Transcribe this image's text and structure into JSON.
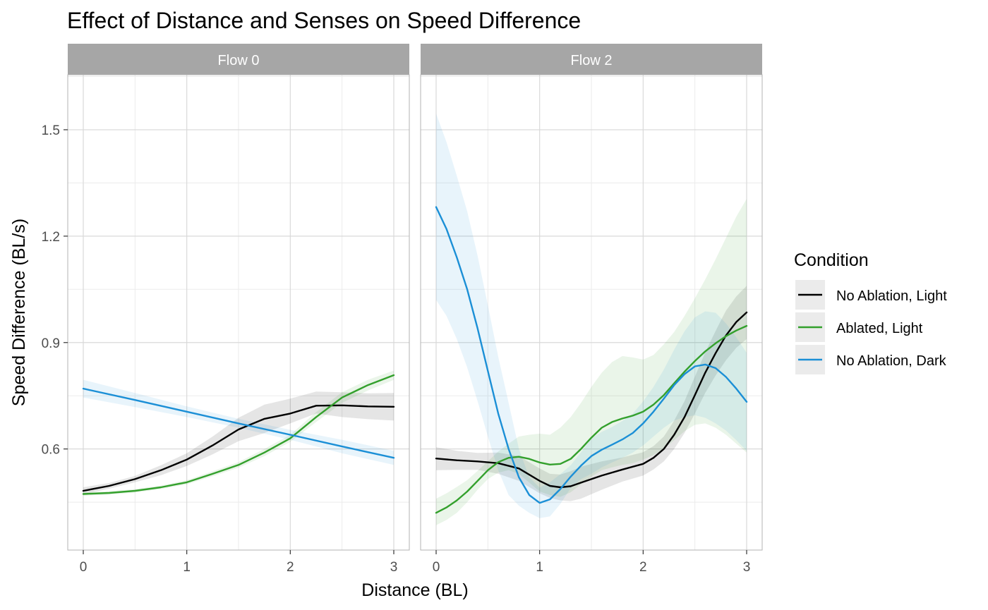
{
  "chart_data": {
    "type": "line",
    "title": "Effect of Distance and Senses on Speed Difference",
    "xlabel": "Distance (BL)",
    "ylabel": "Speed Difference (BL/s)",
    "xlim": [
      -0.15,
      3.15
    ],
    "ylim": [
      0.315,
      1.655
    ],
    "x_ticks": [
      0,
      1,
      2,
      3
    ],
    "y_ticks": [
      0.6,
      0.9,
      1.2,
      1.5
    ],
    "x_tick_labels": [
      "0",
      "1",
      "2",
      "3"
    ],
    "y_tick_labels": [
      "0.6",
      "0.9",
      "1.2",
      "1.5"
    ],
    "grid": true,
    "legend": {
      "title": "Condition",
      "position": "right",
      "entries": [
        {
          "label": "No Ablation, Light",
          "color": "#000000"
        },
        {
          "label": "Ablated, Light",
          "color": "#33a02c"
        },
        {
          "label": "No Ablation, Dark",
          "color": "#1b8fd6"
        }
      ]
    },
    "panels": [
      {
        "name": "Flow 0",
        "series": [
          {
            "name": "No Ablation, Light",
            "color": "#000000",
            "x": [
              0,
              0.25,
              0.5,
              0.75,
              1.0,
              1.25,
              1.5,
              1.75,
              2.0,
              2.25,
              2.5,
              2.75,
              3.0
            ],
            "y": [
              0.482,
              0.496,
              0.515,
              0.54,
              0.57,
              0.61,
              0.655,
              0.685,
              0.7,
              0.722,
              0.723,
              0.72,
              0.719
            ],
            "ymin": [
              0.472,
              0.488,
              0.506,
              0.526,
              0.552,
              0.585,
              0.622,
              0.645,
              0.672,
              0.7,
              0.69,
              0.684,
              0.68
            ],
            "ymax": [
              0.492,
              0.504,
              0.524,
              0.554,
              0.588,
              0.635,
              0.688,
              0.725,
              0.742,
              0.762,
              0.76,
              0.757,
              0.758
            ]
          },
          {
            "name": "Ablated, Light",
            "color": "#33a02c",
            "x": [
              0,
              0.25,
              0.5,
              0.75,
              1.0,
              1.25,
              1.5,
              1.75,
              2.0,
              2.25,
              2.5,
              2.75,
              3.0
            ],
            "y": [
              0.473,
              0.476,
              0.482,
              0.492,
              0.506,
              0.53,
              0.555,
              0.59,
              0.63,
              0.69,
              0.745,
              0.78,
              0.808
            ],
            "ymin": [
              0.468,
              0.471,
              0.477,
              0.487,
              0.5,
              0.523,
              0.547,
              0.58,
              0.62,
              0.676,
              0.73,
              0.765,
              0.795
            ],
            "ymax": [
              0.478,
              0.481,
              0.487,
              0.497,
              0.512,
              0.537,
              0.563,
              0.6,
              0.64,
              0.704,
              0.76,
              0.795,
              0.821
            ]
          },
          {
            "name": "No Ablation, Dark",
            "color": "#1b8fd6",
            "x": [
              0,
              0.5,
              1.0,
              1.5,
              2.0,
              2.5,
              3.0
            ],
            "y": [
              0.77,
              0.738,
              0.705,
              0.672,
              0.64,
              0.607,
              0.575
            ],
            "ymin": [
              0.745,
              0.718,
              0.69,
              0.66,
              0.626,
              0.588,
              0.555
            ],
            "ymax": [
              0.795,
              0.758,
              0.72,
              0.685,
              0.654,
              0.626,
              0.595
            ]
          }
        ]
      },
      {
        "name": "Flow 2",
        "series": [
          {
            "name": "No Ablation, Light",
            "color": "#000000",
            "x": [
              0,
              0.2,
              0.4,
              0.6,
              0.8,
              1.0,
              1.1,
              1.2,
              1.3,
              1.4,
              1.6,
              1.8,
              2.0,
              2.1,
              2.2,
              2.3,
              2.4,
              2.5,
              2.6,
              2.7,
              2.8,
              2.9,
              3.0
            ],
            "y": [
              0.573,
              0.568,
              0.565,
              0.56,
              0.545,
              0.51,
              0.496,
              0.492,
              0.495,
              0.505,
              0.525,
              0.542,
              0.558,
              0.575,
              0.6,
              0.64,
              0.69,
              0.752,
              0.815,
              0.87,
              0.92,
              0.958,
              0.985
            ],
            "ymin": [
              0.54,
              0.541,
              0.541,
              0.53,
              0.51,
              0.475,
              0.462,
              0.455,
              0.453,
              0.46,
              0.485,
              0.508,
              0.525,
              0.542,
              0.565,
              0.6,
              0.645,
              0.7,
              0.758,
              0.807,
              0.85,
              0.885,
              0.91
            ],
            "ymax": [
              0.605,
              0.595,
              0.589,
              0.59,
              0.58,
              0.545,
              0.53,
              0.528,
              0.537,
              0.55,
              0.565,
              0.576,
              0.591,
              0.608,
              0.635,
              0.68,
              0.735,
              0.804,
              0.872,
              0.933,
              0.99,
              1.03,
              1.06
            ]
          },
          {
            "name": "Ablated, Light",
            "color": "#33a02c",
            "x": [
              0,
              0.1,
              0.2,
              0.3,
              0.4,
              0.5,
              0.6,
              0.7,
              0.8,
              0.9,
              1.0,
              1.1,
              1.2,
              1.3,
              1.4,
              1.5,
              1.6,
              1.7,
              1.8,
              1.9,
              2.0,
              2.1,
              2.2,
              2.3,
              2.4,
              2.5,
              2.6,
              2.7,
              2.8,
              2.9,
              3.0
            ],
            "y": [
              0.42,
              0.435,
              0.455,
              0.48,
              0.51,
              0.54,
              0.563,
              0.575,
              0.578,
              0.572,
              0.562,
              0.556,
              0.558,
              0.572,
              0.6,
              0.632,
              0.66,
              0.676,
              0.686,
              0.694,
              0.705,
              0.725,
              0.752,
              0.785,
              0.818,
              0.848,
              0.875,
              0.898,
              0.918,
              0.934,
              0.947
            ],
            "ymin": [
              0.385,
              0.4,
              0.42,
              0.45,
              0.485,
              0.515,
              0.533,
              0.54,
              0.53,
              0.505,
              0.48,
              0.47,
              0.465,
              0.478,
              0.5,
              0.522,
              0.54,
              0.548,
              0.555,
              0.56,
              0.57,
              0.583,
              0.6,
              0.625,
              0.65,
              0.668,
              0.672,
              0.66,
              0.64,
              0.615,
              0.59
            ],
            "ymax": [
              0.46,
              0.475,
              0.493,
              0.512,
              0.538,
              0.565,
              0.593,
              0.615,
              0.635,
              0.64,
              0.643,
              0.64,
              0.66,
              0.69,
              0.73,
              0.775,
              0.815,
              0.845,
              0.862,
              0.858,
              0.852,
              0.865,
              0.895,
              0.93,
              0.975,
              1.025,
              1.078,
              1.135,
              1.195,
              1.255,
              1.305
            ]
          },
          {
            "name": "No Ablation, Dark",
            "color": "#1b8fd6",
            "x": [
              0,
              0.1,
              0.2,
              0.3,
              0.4,
              0.5,
              0.6,
              0.7,
              0.8,
              0.9,
              1.0,
              1.1,
              1.2,
              1.3,
              1.4,
              1.5,
              1.6,
              1.7,
              1.8,
              1.9,
              2.0,
              2.1,
              2.2,
              2.3,
              2.4,
              2.5,
              2.6,
              2.7,
              2.8,
              2.9,
              3.0
            ],
            "y": [
              1.282,
              1.22,
              1.14,
              1.05,
              0.94,
              0.82,
              0.7,
              0.6,
              0.52,
              0.47,
              0.448,
              0.458,
              0.487,
              0.522,
              0.553,
              0.58,
              0.598,
              0.612,
              0.627,
              0.645,
              0.672,
              0.705,
              0.742,
              0.78,
              0.811,
              0.833,
              0.838,
              0.828,
              0.803,
              0.77,
              0.733
            ],
            "ymin": [
              1.02,
              0.975,
              0.91,
              0.83,
              0.735,
              0.635,
              0.54,
              0.47,
              0.44,
              0.42,
              0.405,
              0.41,
              0.445,
              0.49,
              0.515,
              0.53,
              0.548,
              0.562,
              0.575,
              0.59,
              0.61,
              0.635,
              0.66,
              0.68,
              0.69,
              0.695,
              0.688,
              0.672,
              0.652,
              0.625,
              0.595
            ],
            "ymax": [
              1.545,
              1.465,
              1.37,
              1.27,
              1.145,
              1.005,
              0.86,
              0.73,
              0.6,
              0.52,
              0.491,
              0.506,
              0.529,
              0.554,
              0.591,
              0.63,
              0.648,
              0.662,
              0.679,
              0.7,
              0.734,
              0.775,
              0.824,
              0.88,
              0.932,
              0.971,
              0.988,
              0.984,
              0.954,
              0.915,
              0.871
            ]
          }
        ]
      }
    ]
  }
}
